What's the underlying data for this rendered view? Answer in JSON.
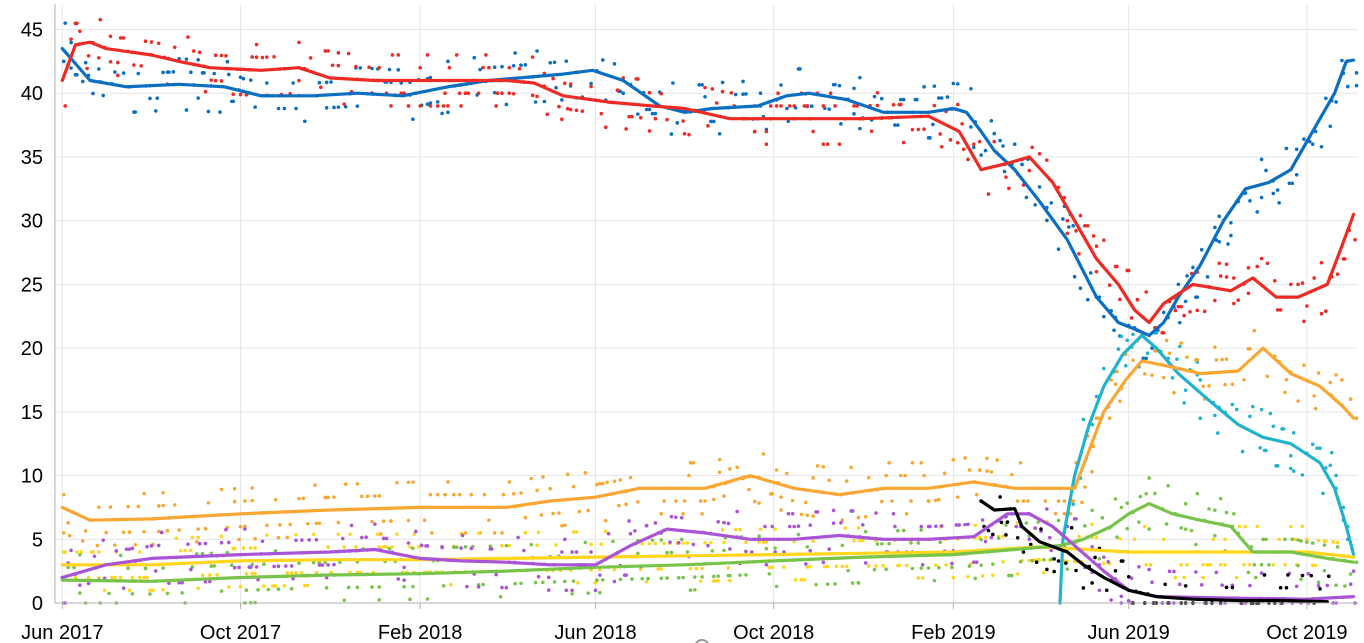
{
  "chart_data": {
    "type": "line",
    "title": "",
    "xlabel": "",
    "ylabel": "",
    "ylim": [
      0,
      47
    ],
    "yticks": [
      0,
      5,
      10,
      15,
      20,
      25,
      30,
      35,
      40,
      45
    ],
    "xlim": [
      "2017-05-27",
      "2019-11-05"
    ],
    "xticks": [
      {
        "date": "2017-06-01",
        "label": "Jun 2017"
      },
      {
        "date": "2017-10-01",
        "label": "Oct 2017"
      },
      {
        "date": "2018-02-01",
        "label": "Feb 2018"
      },
      {
        "date": "2018-06-01",
        "label": "Jun 2018"
      },
      {
        "date": "2018-10-01",
        "label": "Oct 2018"
      },
      {
        "date": "2019-02-01",
        "label": "Feb 2019"
      },
      {
        "date": "2019-06-01",
        "label": "Jun 2019"
      },
      {
        "date": "2019-10-01",
        "label": "Oct 2019"
      }
    ],
    "grid": true,
    "legend": "none",
    "series": [
      {
        "color": "#0a6fc2",
        "points": [
          [
            "2017-06-01",
            43.5
          ],
          [
            "2017-06-20",
            41.0
          ],
          [
            "2017-07-15",
            40.5
          ],
          [
            "2017-08-20",
            40.7
          ],
          [
            "2017-09-20",
            40.5
          ],
          [
            "2017-10-15",
            39.8
          ],
          [
            "2017-11-20",
            39.8
          ],
          [
            "2017-12-20",
            40.0
          ],
          [
            "2018-01-20",
            39.8
          ],
          [
            "2018-02-20",
            40.5
          ],
          [
            "2018-03-20",
            41.0
          ],
          [
            "2018-04-20",
            41.3
          ],
          [
            "2018-05-10",
            41.5
          ],
          [
            "2018-05-30",
            41.8
          ],
          [
            "2018-06-20",
            41.0
          ],
          [
            "2018-07-15",
            39.0
          ],
          [
            "2018-08-01",
            38.5
          ],
          [
            "2018-08-20",
            38.8
          ],
          [
            "2018-09-20",
            39.0
          ],
          [
            "2018-10-10",
            39.8
          ],
          [
            "2018-10-25",
            40.0
          ],
          [
            "2018-11-20",
            39.5
          ],
          [
            "2018-12-15",
            38.5
          ],
          [
            "2019-01-15",
            38.5
          ],
          [
            "2019-02-01",
            38.8
          ],
          [
            "2019-02-10",
            38.5
          ],
          [
            "2019-02-20",
            37.0
          ],
          [
            "2019-03-01",
            35.5
          ],
          [
            "2019-03-15",
            34.0
          ],
          [
            "2019-04-01",
            31.5
          ],
          [
            "2019-04-20",
            28.5
          ],
          [
            "2019-05-10",
            24.0
          ],
          [
            "2019-05-25",
            22.0
          ],
          [
            "2019-06-05",
            21.5
          ],
          [
            "2019-06-15",
            21.0
          ],
          [
            "2019-06-25",
            22.0
          ],
          [
            "2019-07-05",
            24.0
          ],
          [
            "2019-07-20",
            26.5
          ],
          [
            "2019-08-05",
            30.0
          ],
          [
            "2019-08-20",
            32.5
          ],
          [
            "2019-09-05",
            33.0
          ],
          [
            "2019-09-20",
            34.0
          ],
          [
            "2019-10-05",
            37.0
          ],
          [
            "2019-10-20",
            40.0
          ],
          [
            "2019-10-28",
            42.5
          ],
          [
            "2019-11-02",
            42.6
          ]
        ]
      },
      {
        "color": "#ee2a24",
        "points": [
          [
            "2017-06-01",
            41.0
          ],
          [
            "2017-06-10",
            43.8
          ],
          [
            "2017-06-20",
            44.0
          ],
          [
            "2017-07-01",
            43.5
          ],
          [
            "2017-08-01",
            43.0
          ],
          [
            "2017-08-20",
            42.5
          ],
          [
            "2017-09-10",
            42.0
          ],
          [
            "2017-10-15",
            41.8
          ],
          [
            "2017-11-10",
            42.0
          ],
          [
            "2017-12-01",
            41.2
          ],
          [
            "2018-01-01",
            41.0
          ],
          [
            "2018-02-01",
            41.0
          ],
          [
            "2018-03-01",
            41.0
          ],
          [
            "2018-04-01",
            41.0
          ],
          [
            "2018-04-20",
            40.8
          ],
          [
            "2018-05-10",
            39.8
          ],
          [
            "2018-06-10",
            39.3
          ],
          [
            "2018-07-10",
            39.0
          ],
          [
            "2018-08-01",
            38.8
          ],
          [
            "2018-09-01",
            38.0
          ],
          [
            "2018-10-01",
            38.0
          ],
          [
            "2018-11-01",
            38.0
          ],
          [
            "2018-12-01",
            38.0
          ],
          [
            "2019-01-15",
            38.2
          ],
          [
            "2019-02-05",
            37.0
          ],
          [
            "2019-02-20",
            34.0
          ],
          [
            "2019-03-10",
            34.5
          ],
          [
            "2019-03-25",
            35.0
          ],
          [
            "2019-04-10",
            33.0
          ],
          [
            "2019-04-25",
            30.0
          ],
          [
            "2019-05-10",
            27.0
          ],
          [
            "2019-05-25",
            25.0
          ],
          [
            "2019-06-05",
            23.0
          ],
          [
            "2019-06-15",
            22.0
          ],
          [
            "2019-06-25",
            23.5
          ],
          [
            "2019-07-15",
            25.0
          ],
          [
            "2019-08-10",
            24.5
          ],
          [
            "2019-08-25",
            25.5
          ],
          [
            "2019-09-10",
            24.0
          ],
          [
            "2019-09-25",
            24.0
          ],
          [
            "2019-10-15",
            25.0
          ],
          [
            "2019-10-25",
            28.0
          ],
          [
            "2019-11-02",
            30.5
          ]
        ]
      },
      {
        "color": "#22b3cc",
        "points": [
          [
            "2019-04-15",
            0.0
          ],
          [
            "2019-04-17",
            5.0
          ],
          [
            "2019-04-25",
            10.0
          ],
          [
            "2019-05-05",
            14.0
          ],
          [
            "2019-05-15",
            17.0
          ],
          [
            "2019-05-28",
            19.5
          ],
          [
            "2019-06-10",
            21.0
          ],
          [
            "2019-06-20",
            20.0
          ],
          [
            "2019-07-05",
            18.0
          ],
          [
            "2019-07-25",
            16.0
          ],
          [
            "2019-08-15",
            14.0
          ],
          [
            "2019-09-01",
            13.0
          ],
          [
            "2019-09-20",
            12.5
          ],
          [
            "2019-10-10",
            11.0
          ],
          [
            "2019-10-20",
            9.0
          ],
          [
            "2019-10-28",
            6.0
          ],
          [
            "2019-11-02",
            3.8
          ]
        ]
      },
      {
        "color": "#faa633",
        "points": [
          [
            "2017-06-01",
            7.5
          ],
          [
            "2017-06-20",
            6.5
          ],
          [
            "2017-08-01",
            6.6
          ],
          [
            "2017-10-01",
            7.0
          ],
          [
            "2017-12-01",
            7.3
          ],
          [
            "2018-02-01",
            7.5
          ],
          [
            "2018-04-01",
            7.5
          ],
          [
            "2018-05-01",
            8.0
          ],
          [
            "2018-06-01",
            8.3
          ],
          [
            "2018-07-01",
            9.0
          ],
          [
            "2018-08-15",
            9.0
          ],
          [
            "2018-09-15",
            10.0
          ],
          [
            "2018-10-15",
            9.0
          ],
          [
            "2018-11-15",
            8.5
          ],
          [
            "2018-12-15",
            9.0
          ],
          [
            "2019-01-15",
            9.0
          ],
          [
            "2019-02-15",
            9.5
          ],
          [
            "2019-03-15",
            9.0
          ],
          [
            "2019-04-15",
            9.0
          ],
          [
            "2019-04-25",
            9.0
          ],
          [
            "2019-05-05",
            12.0
          ],
          [
            "2019-05-15",
            15.0
          ],
          [
            "2019-05-30",
            17.5
          ],
          [
            "2019-06-10",
            19.0
          ],
          [
            "2019-07-01",
            18.5
          ],
          [
            "2019-07-20",
            18.0
          ],
          [
            "2019-08-15",
            18.2
          ],
          [
            "2019-09-01",
            20.0
          ],
          [
            "2019-09-20",
            18.0
          ],
          [
            "2019-10-10",
            17.0
          ],
          [
            "2019-10-25",
            15.5
          ],
          [
            "2019-11-02",
            14.5
          ]
        ]
      },
      {
        "color": "#ffd51f",
        "points": [
          [
            "2017-06-01",
            3.0
          ],
          [
            "2017-08-01",
            3.0
          ],
          [
            "2017-10-01",
            3.3
          ],
          [
            "2017-12-01",
            3.4
          ],
          [
            "2018-02-01",
            3.4
          ],
          [
            "2018-04-01",
            3.5
          ],
          [
            "2018-06-01",
            3.6
          ],
          [
            "2018-08-01",
            3.7
          ],
          [
            "2018-10-01",
            3.8
          ],
          [
            "2018-12-01",
            3.9
          ],
          [
            "2019-02-01",
            4.0
          ],
          [
            "2019-04-01",
            4.4
          ],
          [
            "2019-06-01",
            4.0
          ],
          [
            "2019-08-01",
            4.0
          ],
          [
            "2019-10-01",
            4.0
          ],
          [
            "2019-11-02",
            3.6
          ]
        ]
      },
      {
        "color": "#78c44a",
        "points": [
          [
            "2017-06-01",
            1.8
          ],
          [
            "2017-08-01",
            1.7
          ],
          [
            "2017-10-01",
            2.0
          ],
          [
            "2017-12-01",
            2.2
          ],
          [
            "2018-02-01",
            2.3
          ],
          [
            "2018-04-01",
            2.5
          ],
          [
            "2018-06-01",
            2.8
          ],
          [
            "2018-08-01",
            3.0
          ],
          [
            "2018-10-01",
            3.3
          ],
          [
            "2018-12-01",
            3.6
          ],
          [
            "2019-02-01",
            3.8
          ],
          [
            "2019-03-15",
            4.2
          ],
          [
            "2019-04-15",
            4.5
          ],
          [
            "2019-05-01",
            5.0
          ],
          [
            "2019-05-20",
            6.0
          ],
          [
            "2019-06-01",
            7.0
          ],
          [
            "2019-06-15",
            7.8
          ],
          [
            "2019-07-01",
            7.0
          ],
          [
            "2019-07-20",
            6.5
          ],
          [
            "2019-08-10",
            6.0
          ],
          [
            "2019-08-25",
            4.0
          ],
          [
            "2019-09-20",
            4.0
          ],
          [
            "2019-10-15",
            3.5
          ],
          [
            "2019-11-02",
            3.2
          ]
        ]
      },
      {
        "color": "#a953d6",
        "points": [
          [
            "2017-06-01",
            2.0
          ],
          [
            "2017-07-01",
            3.0
          ],
          [
            "2017-08-01",
            3.5
          ],
          [
            "2017-10-01",
            3.8
          ],
          [
            "2017-12-01",
            4.0
          ],
          [
            "2018-01-01",
            4.2
          ],
          [
            "2018-02-01",
            3.5
          ],
          [
            "2018-03-01",
            3.3
          ],
          [
            "2018-04-01",
            3.2
          ],
          [
            "2018-05-01",
            3.0
          ],
          [
            "2018-06-01",
            3.0
          ],
          [
            "2018-06-25",
            4.5
          ],
          [
            "2018-07-20",
            5.8
          ],
          [
            "2018-08-15",
            5.5
          ],
          [
            "2018-09-15",
            5.0
          ],
          [
            "2018-10-15",
            5.0
          ],
          [
            "2018-11-15",
            5.3
          ],
          [
            "2018-12-15",
            5.0
          ],
          [
            "2019-01-15",
            5.0
          ],
          [
            "2019-02-15",
            5.2
          ],
          [
            "2019-03-10",
            7.0
          ],
          [
            "2019-03-25",
            7.0
          ],
          [
            "2019-04-10",
            6.0
          ],
          [
            "2019-04-25",
            4.5
          ],
          [
            "2019-05-15",
            2.5
          ],
          [
            "2019-06-01",
            1.0
          ],
          [
            "2019-06-20",
            0.5
          ],
          [
            "2019-08-01",
            0.4
          ],
          [
            "2019-10-01",
            0.3
          ],
          [
            "2019-11-02",
            0.5
          ]
        ]
      },
      {
        "color": "#000000",
        "points": [
          [
            "2019-02-20",
            8.0
          ],
          [
            "2019-03-01",
            7.3
          ],
          [
            "2019-03-15",
            7.4
          ],
          [
            "2019-03-20",
            6.0
          ],
          [
            "2019-04-01",
            4.8
          ],
          [
            "2019-04-20",
            4.0
          ],
          [
            "2019-05-01",
            3.0
          ],
          [
            "2019-05-15",
            2.0
          ],
          [
            "2019-06-01",
            1.0
          ],
          [
            "2019-06-20",
            0.5
          ],
          [
            "2019-07-15",
            0.3
          ],
          [
            "2019-08-15",
            0.2
          ],
          [
            "2019-09-15",
            0.2
          ],
          [
            "2019-10-15",
            0.1
          ]
        ]
      }
    ]
  }
}
